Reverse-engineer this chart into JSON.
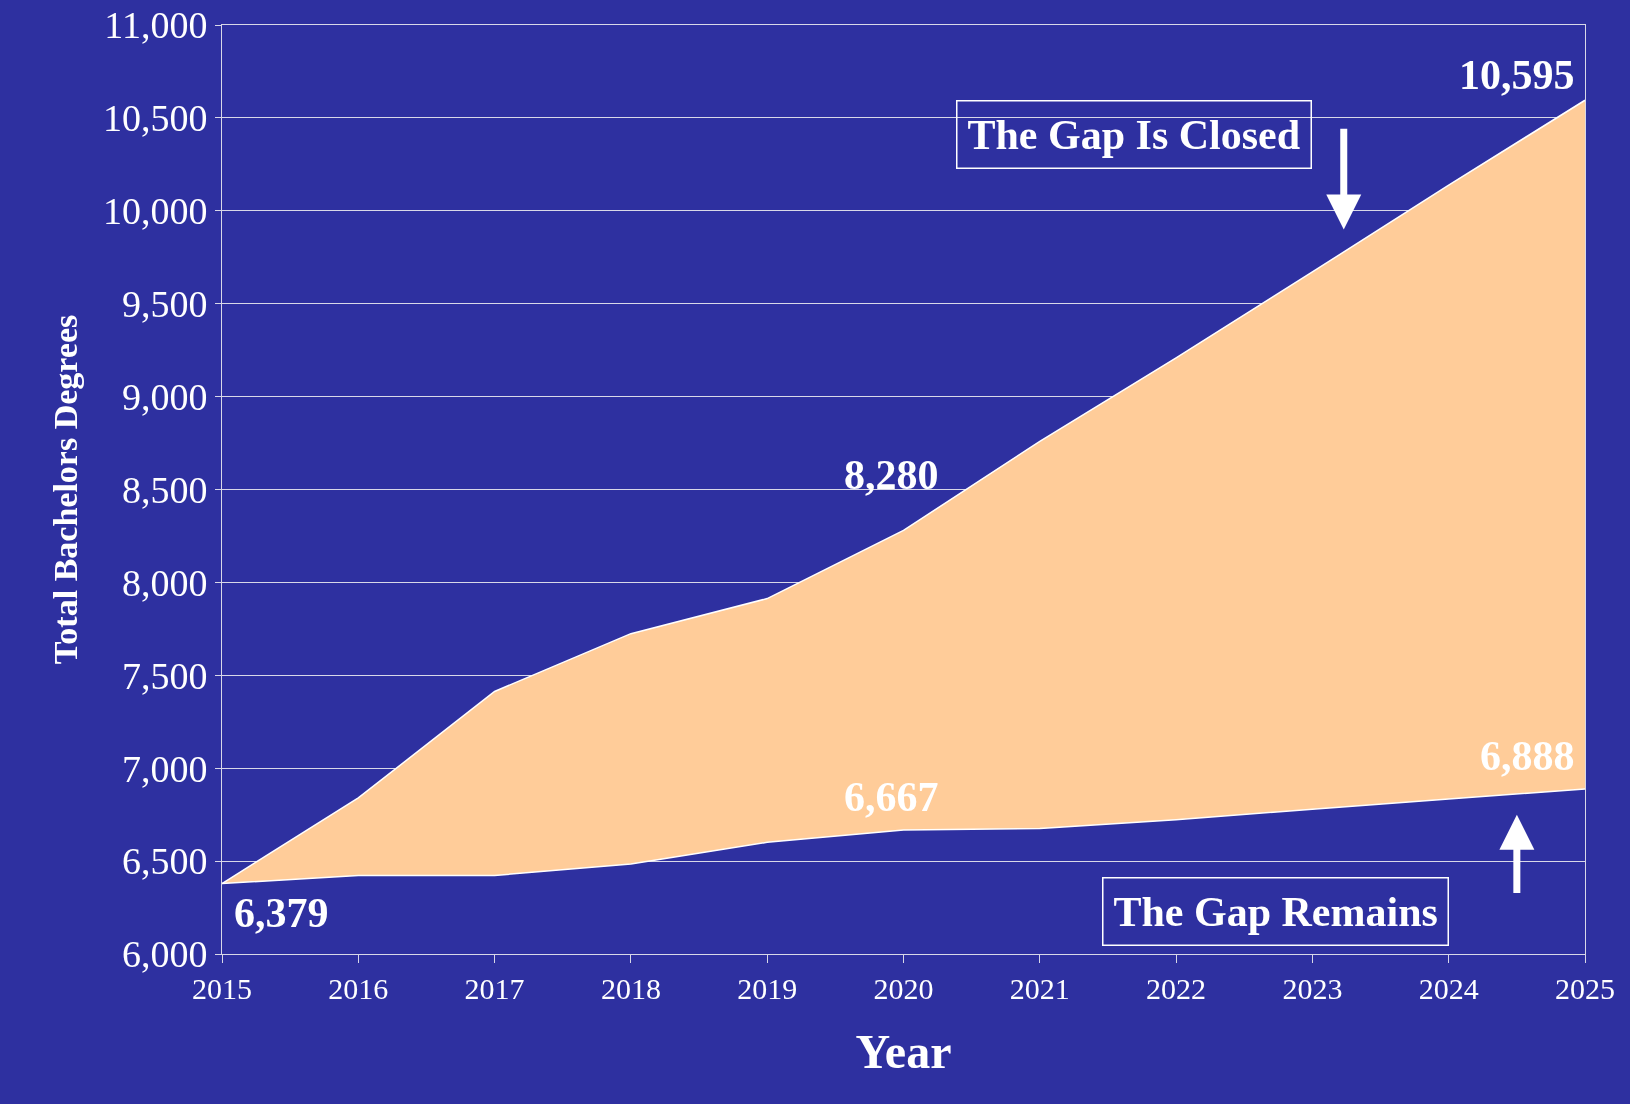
{
  "chart_data": {
    "type": "area",
    "xlabel": "Year",
    "ylabel": "Total Bachelors Degrees",
    "x": [
      2015,
      2016,
      2017,
      2018,
      2019,
      2020,
      2021,
      2022,
      2023,
      2024,
      2025
    ],
    "series": [
      {
        "type": "line",
        "color": "#ffffff",
        "values": [
          6379,
          6423,
          6423,
          6484,
          6601,
          6667,
          6675,
          6723,
          6779,
          6834,
          6888
        ]
      },
      {
        "color": "#ffcc99",
        "values": [
          6379,
          6840,
          7413,
          7724,
          7913,
          8280,
          8759,
          9209,
          9671,
          10138,
          10595
        ]
      }
    ],
    "xlim": [
      2015,
      2025
    ],
    "xticks": [
      2015,
      2016,
      2017,
      2018,
      2019,
      2020,
      2021,
      2022,
      2023,
      2024,
      2025
    ],
    "ylim": [
      6000,
      11000
    ],
    "yticks": [
      {
        "value": 6000,
        "label": "6,000"
      },
      {
        "value": 6500,
        "label": "6,500"
      },
      {
        "value": 7000,
        "label": "7,000"
      },
      {
        "value": 7500,
        "label": "7,500"
      },
      {
        "value": 8000,
        "label": "8,000"
      },
      {
        "value": 8500,
        "label": "8,500"
      },
      {
        "value": 9000,
        "label": "9,000"
      },
      {
        "value": 9500,
        "label": "9,500"
      },
      {
        "value": 10000,
        "label": "10,000"
      },
      {
        "value": 10500,
        "label": "10,500"
      },
      {
        "value": 11000,
        "label": "11,000"
      }
    ],
    "grid": "y",
    "annotations": [
      {
        "text": "6,379",
        "x": 2015,
        "y": 6379
      },
      {
        "text": "8,280",
        "x": 2020,
        "y": 8280
      },
      {
        "text": "10,595",
        "x": 2025,
        "y": 10595
      },
      {
        "text": "6,667",
        "x": 2020,
        "y": 6667
      },
      {
        "text": "6,888",
        "x": 2025,
        "y": 6888
      },
      "The Gap Is Closed",
      "The Gap Remains"
    ]
  }
}
